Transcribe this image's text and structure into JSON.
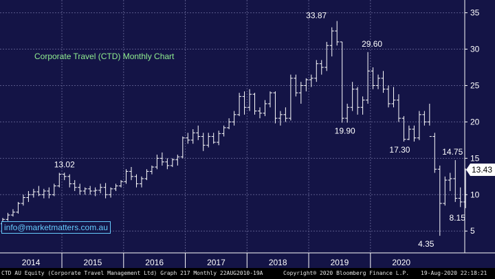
{
  "chart_data": {
    "type": "ohlc",
    "title": "Corporate Travel (CTD) Monthly Chart",
    "ylim": [
      2,
      36
    ],
    "yticks": [
      5,
      10,
      15,
      20,
      25,
      30,
      35
    ],
    "years": [
      "2014",
      "2015",
      "2016",
      "2017",
      "2018",
      "2019",
      "2020"
    ],
    "last_price": 13.43,
    "x_start": "2014-01",
    "bars": [
      [
        6.0,
        6.8,
        5.8,
        6.6
      ],
      [
        6.6,
        7.5,
        6.4,
        7.2
      ],
      [
        7.2,
        8.0,
        7.0,
        7.6
      ],
      [
        7.6,
        9.0,
        7.4,
        8.8
      ],
      [
        8.8,
        10.0,
        8.5,
        9.6
      ],
      [
        9.6,
        10.5,
        9.0,
        10.0
      ],
      [
        10.0,
        10.8,
        9.6,
        10.4
      ],
      [
        10.4,
        11.2,
        9.8,
        10.0
      ],
      [
        10.0,
        10.8,
        9.5,
        10.5
      ],
      [
        10.5,
        11.0,
        9.5,
        10.0
      ],
      [
        10.0,
        11.5,
        9.8,
        11.2
      ],
      [
        11.2,
        13.0,
        11.0,
        12.8
      ],
      [
        12.8,
        13.02,
        12.0,
        12.5
      ],
      [
        12.5,
        12.8,
        11.0,
        11.5
      ],
      [
        11.5,
        12.0,
        10.5,
        11.0
      ],
      [
        11.0,
        11.5,
        10.0,
        10.5
      ],
      [
        10.5,
        11.0,
        10.0,
        10.8
      ],
      [
        10.8,
        11.2,
        10.0,
        10.5
      ],
      [
        10.5,
        11.0,
        9.8,
        10.6
      ],
      [
        10.6,
        11.5,
        10.2,
        11.0
      ],
      [
        11.0,
        11.6,
        9.5,
        10.0
      ],
      [
        10.0,
        11.0,
        9.6,
        10.8
      ],
      [
        10.8,
        11.5,
        10.5,
        11.2
      ],
      [
        11.2,
        12.0,
        11.0,
        11.8
      ],
      [
        11.8,
        13.5,
        11.5,
        13.2
      ],
      [
        13.2,
        13.8,
        12.0,
        12.5
      ],
      [
        12.5,
        12.8,
        11.0,
        11.5
      ],
      [
        11.5,
        12.5,
        11.0,
        12.2
      ],
      [
        12.2,
        13.5,
        12.0,
        13.2
      ],
      [
        13.2,
        14.0,
        12.8,
        13.8
      ],
      [
        13.8,
        15.5,
        13.5,
        15.0
      ],
      [
        15.0,
        15.8,
        14.0,
        14.5
      ],
      [
        14.5,
        15.0,
        13.5,
        14.0
      ],
      [
        14.0,
        15.0,
        13.8,
        14.8
      ],
      [
        14.8,
        15.5,
        14.0,
        15.2
      ],
      [
        15.2,
        18.0,
        15.0,
        17.8
      ],
      [
        17.8,
        18.5,
        17.0,
        17.5
      ],
      [
        17.5,
        19.0,
        17.0,
        18.5
      ],
      [
        18.5,
        19.5,
        17.5,
        18.0
      ],
      [
        18.0,
        18.5,
        16.0,
        16.8
      ],
      [
        16.8,
        18.5,
        16.5,
        18.0
      ],
      [
        18.0,
        18.5,
        17.0,
        17.2
      ],
      [
        17.2,
        18.8,
        16.8,
        18.4
      ],
      [
        18.4,
        19.5,
        18.0,
        19.2
      ],
      [
        19.2,
        20.5,
        19.0,
        20.0
      ],
      [
        20.0,
        21.5,
        19.5,
        21.0
      ],
      [
        21.0,
        24.0,
        20.8,
        23.5
      ],
      [
        23.5,
        24.2,
        21.0,
        22.0
      ],
      [
        22.0,
        24.5,
        21.5,
        23.8
      ],
      [
        23.8,
        24.0,
        21.0,
        21.5
      ],
      [
        21.5,
        22.0,
        20.5,
        21.2
      ],
      [
        21.2,
        23.0,
        20.8,
        22.5
      ],
      [
        22.5,
        24.2,
        22.0,
        24.0
      ],
      [
        24.0,
        24.2,
        19.8,
        20.5
      ],
      [
        20.5,
        21.5,
        19.5,
        21.0
      ],
      [
        21.0,
        22.0,
        20.0,
        20.5
      ],
      [
        20.5,
        26.5,
        20.2,
        26.0
      ],
      [
        26.0,
        26.5,
        23.5,
        24.0
      ],
      [
        24.0,
        25.5,
        22.5,
        25.0
      ],
      [
        25.0,
        26.0,
        24.2,
        25.8
      ],
      [
        25.8,
        26.5,
        24.8,
        26.0
      ],
      [
        26.0,
        28.5,
        25.5,
        28.0
      ],
      [
        28.0,
        28.5,
        26.5,
        27.5
      ],
      [
        27.5,
        31.0,
        27.0,
        30.5
      ],
      [
        30.5,
        33.0,
        29.0,
        32.5
      ],
      [
        32.5,
        33.87,
        30.5,
        31.0
      ],
      [
        31.0,
        31.0,
        19.9,
        20.5
      ],
      [
        20.5,
        22.5,
        19.9,
        22.0
      ],
      [
        22.0,
        25.5,
        21.5,
        24.5
      ],
      [
        24.5,
        24.8,
        21.0,
        22.0
      ],
      [
        22.0,
        23.5,
        21.0,
        23.0
      ],
      [
        23.0,
        29.6,
        22.5,
        27.0
      ],
      [
        27.0,
        27.5,
        24.5,
        25.0
      ],
      [
        25.0,
        26.5,
        24.5,
        26.0
      ],
      [
        26.0,
        27.0,
        24.0,
        24.5
      ],
      [
        24.5,
        25.0,
        22.0,
        22.5
      ],
      [
        22.5,
        24.8,
        22.0,
        23.0
      ],
      [
        23.0,
        23.8,
        20.0,
        20.5
      ],
      [
        20.5,
        20.8,
        17.3,
        17.6
      ],
      [
        17.6,
        19.5,
        17.5,
        19.0
      ],
      [
        19.0,
        19.5,
        17.3,
        17.8
      ],
      [
        17.8,
        21.5,
        17.5,
        21.0
      ],
      [
        21.0,
        21.5,
        19.5,
        20.0
      ],
      [
        20.0,
        22.5,
        19.5,
        18.0
      ],
      [
        18.0,
        18.5,
        13.0,
        13.5
      ],
      [
        13.5,
        14.0,
        4.35,
        8.8
      ],
      [
        8.8,
        12.5,
        8.5,
        12.0
      ],
      [
        12.0,
        13.0,
        10.5,
        12.2
      ],
      [
        12.2,
        14.75,
        9.0,
        9.5
      ],
      [
        9.5,
        11.0,
        8.3,
        9.0
      ],
      [
        9.0,
        13.6,
        8.15,
        13.43
      ]
    ],
    "annotations": [
      {
        "text": "13.02",
        "value": 13.02
      },
      {
        "text": "33.87",
        "value": 33.87
      },
      {
        "text": "29.60",
        "value": 29.6
      },
      {
        "text": "19.90",
        "value": 19.9
      },
      {
        "text": "17.30",
        "value": 17.3
      },
      {
        "text": "14.75",
        "value": 14.75
      },
      {
        "text": "8.15",
        "value": 8.15
      },
      {
        "text": "4.35",
        "value": 4.35
      }
    ]
  },
  "watermark": "info@marketmatters.com.au",
  "footer": {
    "left": "CTD AU Equity (Corporate Travel Management Ltd) Graph 217  Monthly 22AUG2010-19A",
    "center": "Copyright® 2020 Bloomberg Finance L.P.",
    "right": "19-Aug-2020 22:18:21"
  },
  "colors": {
    "background": "#141446",
    "bars": "#ffffff",
    "title": "#90ee90",
    "watermark": "#66ccff",
    "last_price_tag": "#ffffff"
  }
}
